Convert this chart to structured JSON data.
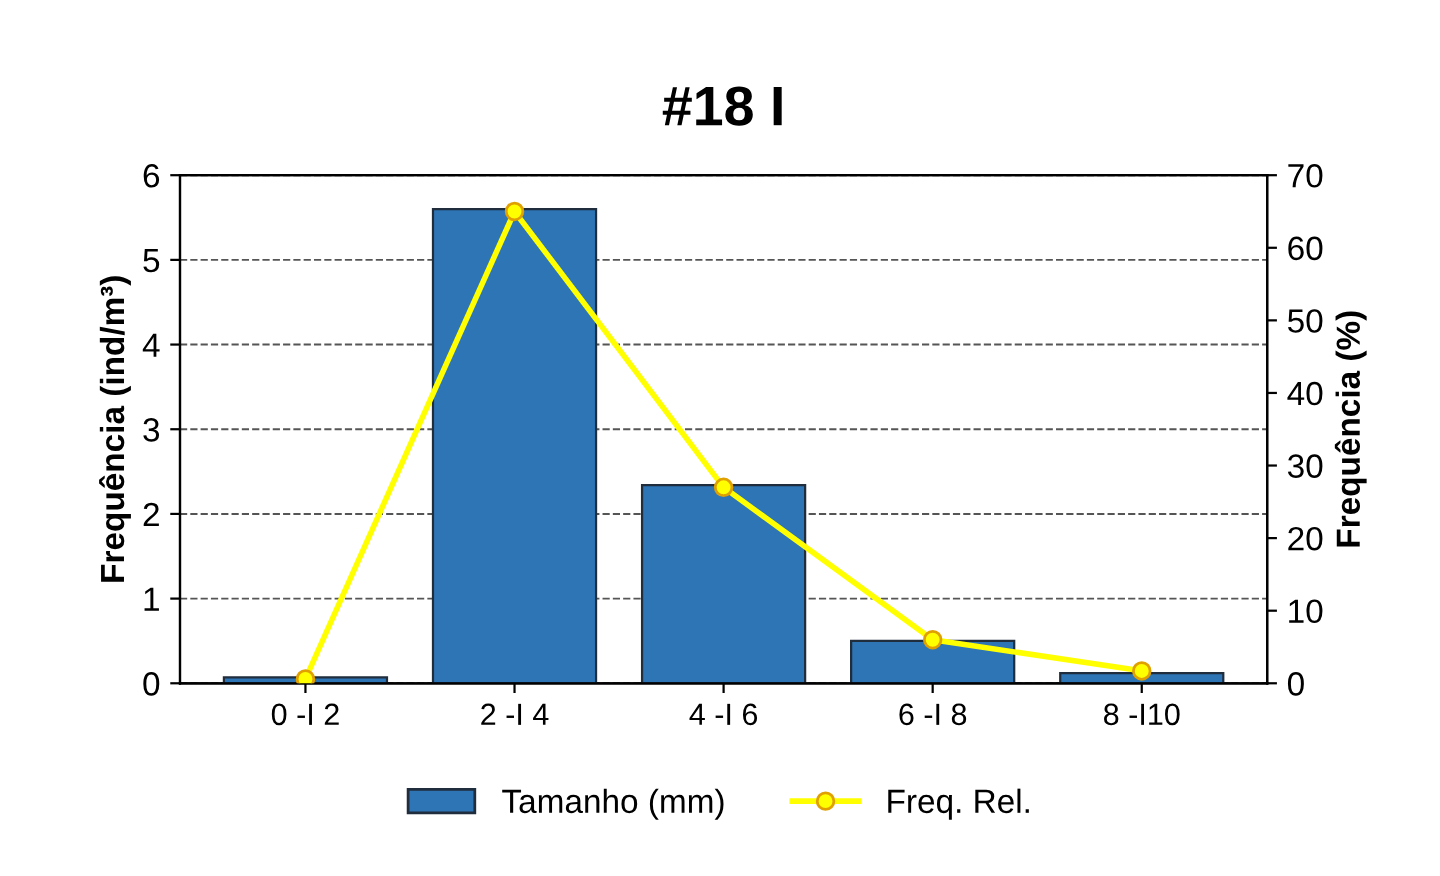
{
  "chart_data": {
    "type": "bar",
    "title": "#18 I",
    "ylabel": "Frequência (ind/m³)",
    "y2label": "Frequência (%)",
    "categories": [
      "0 -I 2",
      "2 -I 4",
      "4 -I 6",
      "6 -I 8",
      "8 -I10"
    ],
    "series": [
      {
        "name": "Tamanho (mm)",
        "color": "#2e75b6",
        "values": [
          0.07,
          5.6,
          2.34,
          0.5,
          0.12
        ]
      },
      {
        "name": "Freq. Rel.",
        "type": "line",
        "axis": "y2",
        "color": "#ffff00",
        "marker": "circle",
        "values": [
          0.6,
          65,
          27,
          6,
          1.7
        ]
      }
    ],
    "ylim": [
      0,
      6
    ],
    "yticks": [
      0,
      1,
      2,
      3,
      4,
      5,
      6
    ],
    "y2lim": [
      0,
      70
    ],
    "y2ticks": [
      0,
      10,
      20,
      30,
      40,
      50,
      60,
      70
    ],
    "grid": "y",
    "legend": "bottom"
  }
}
